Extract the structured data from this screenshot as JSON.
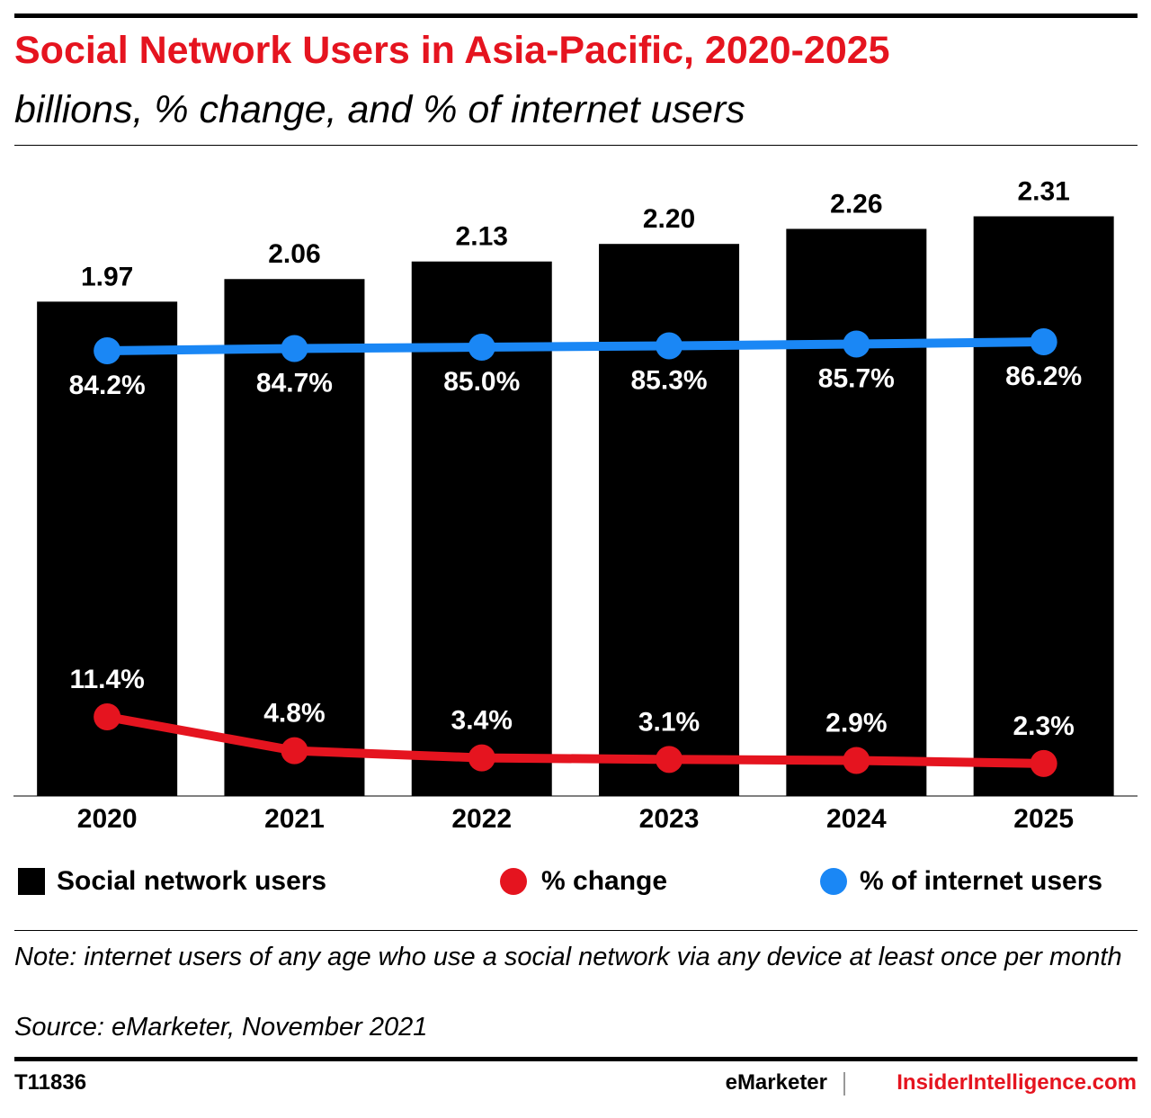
{
  "chart_data": {
    "type": "bar",
    "title": "Social Network Users in Asia-Pacific, 2020-2025",
    "subtitle": "billions, % change, and % of internet users",
    "categories": [
      "2020",
      "2021",
      "2022",
      "2023",
      "2024",
      "2025"
    ],
    "series": [
      {
        "name": "Social network users",
        "color": "#000000",
        "values": [
          1.97,
          2.06,
          2.13,
          2.2,
          2.26,
          2.31
        ],
        "value_labels": [
          "1.97",
          "2.06",
          "2.13",
          "2.20",
          "2.26",
          "2.31"
        ]
      },
      {
        "name": "% change",
        "type": "line",
        "color": "#e5141f",
        "values": [
          11.4,
          4.8,
          3.4,
          3.1,
          2.9,
          2.3
        ],
        "value_labels": [
          "11.4%",
          "4.8%",
          "3.4%",
          "3.1%",
          "2.9%",
          "2.3%"
        ]
      },
      {
        "name": "% of internet users",
        "type": "line",
        "color": "#1a87f5",
        "values": [
          84.2,
          84.7,
          85.0,
          85.3,
          85.7,
          86.2
        ],
        "value_labels": [
          "84.2%",
          "84.7%",
          "85.0%",
          "85.3%",
          "85.7%",
          "86.2%"
        ]
      }
    ],
    "note": "Note: internet users of any age who use a social network via any device at least once per month",
    "source": "Source: eMarketer, November 2021",
    "chart_id": "T11836",
    "brand": "eMarketer",
    "site": "InsiderIntelligence.com"
  }
}
